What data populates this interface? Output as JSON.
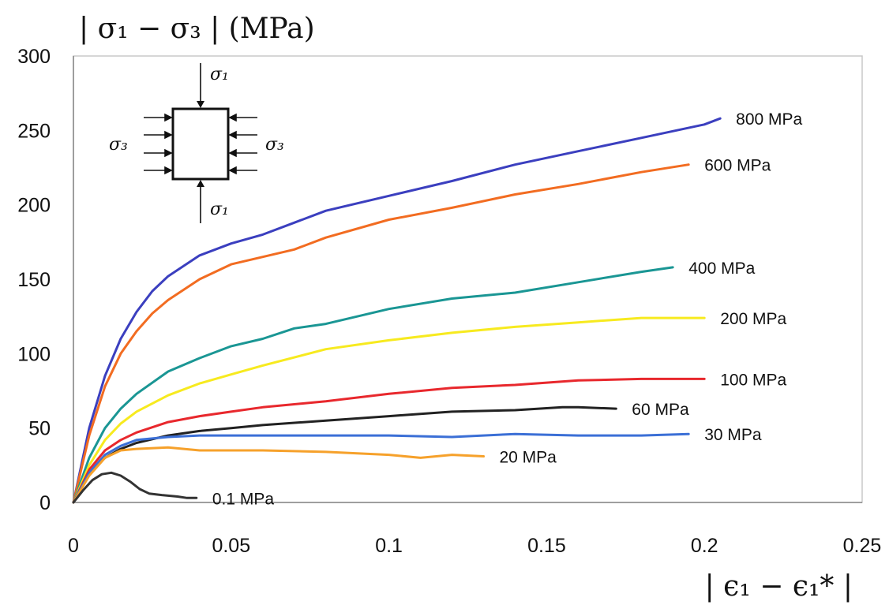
{
  "chart_data": {
    "type": "line",
    "ylabel": "| σ₁ − σ₃ |  (MPa)",
    "xlabel": "| ϵ₁ − ϵ₁* |",
    "xlim": [
      0,
      0.25
    ],
    "ylim": [
      0,
      300
    ],
    "x_ticks": [
      "0",
      "0.05",
      "0.1",
      "0.15",
      "0.2",
      "0.25"
    ],
    "y_ticks": [
      "0",
      "50",
      "100",
      "150",
      "200",
      "250",
      "300"
    ],
    "grid": false,
    "legend": "inline labels at curve ends",
    "inset_labels": [
      "σ₁",
      "σ₃",
      "σ₃",
      "σ₁"
    ],
    "series": [
      {
        "name": "800 MPa",
        "color": "#3b3fbf",
        "x": [
          0,
          0.005,
          0.01,
          0.015,
          0.02,
          0.025,
          0.03,
          0.04,
          0.05,
          0.06,
          0.07,
          0.08,
          0.1,
          0.12,
          0.14,
          0.16,
          0.18,
          0.2,
          0.205
        ],
        "y": [
          0,
          50,
          85,
          110,
          128,
          142,
          152,
          166,
          174,
          180,
          188,
          196,
          206,
          216,
          227,
          236,
          245,
          254,
          258
        ]
      },
      {
        "name": "600 MPa",
        "color": "#f26c21",
        "x": [
          0,
          0.005,
          0.01,
          0.015,
          0.02,
          0.025,
          0.03,
          0.04,
          0.05,
          0.06,
          0.07,
          0.08,
          0.1,
          0.12,
          0.14,
          0.16,
          0.18,
          0.195
        ],
        "y": [
          0,
          45,
          78,
          100,
          115,
          127,
          136,
          150,
          160,
          165,
          170,
          178,
          190,
          198,
          207,
          214,
          222,
          227
        ]
      },
      {
        "name": "400 MPa",
        "color": "#1a9694",
        "x": [
          0,
          0.005,
          0.01,
          0.015,
          0.02,
          0.03,
          0.04,
          0.05,
          0.06,
          0.07,
          0.08,
          0.1,
          0.12,
          0.14,
          0.16,
          0.18,
          0.19
        ],
        "y": [
          0,
          30,
          50,
          63,
          73,
          88,
          97,
          105,
          110,
          117,
          120,
          130,
          137,
          141,
          148,
          155,
          158
        ]
      },
      {
        "name": "200 MPa",
        "color": "#f7ea1f",
        "x": [
          0,
          0.005,
          0.01,
          0.015,
          0.02,
          0.03,
          0.04,
          0.05,
          0.06,
          0.08,
          0.1,
          0.12,
          0.14,
          0.16,
          0.18,
          0.2
        ],
        "y": [
          0,
          25,
          42,
          53,
          61,
          72,
          80,
          86,
          92,
          103,
          109,
          114,
          118,
          121,
          124,
          124
        ]
      },
      {
        "name": "100 MPa",
        "color": "#e8282d",
        "x": [
          0,
          0.005,
          0.01,
          0.015,
          0.02,
          0.03,
          0.04,
          0.05,
          0.06,
          0.08,
          0.1,
          0.12,
          0.14,
          0.16,
          0.18,
          0.2
        ],
        "y": [
          0,
          22,
          35,
          42,
          47,
          54,
          58,
          61,
          64,
          68,
          73,
          77,
          79,
          82,
          83,
          83
        ]
      },
      {
        "name": "60 MPa",
        "color": "#222222",
        "x": [
          0,
          0.005,
          0.01,
          0.015,
          0.02,
          0.03,
          0.04,
          0.05,
          0.06,
          0.08,
          0.1,
          0.12,
          0.14,
          0.155,
          0.16,
          0.172
        ],
        "y": [
          0,
          20,
          30,
          36,
          40,
          45,
          48,
          50,
          52,
          55,
          58,
          61,
          62,
          64,
          64,
          63
        ]
      },
      {
        "name": "30 MPa",
        "color": "#3b6fd6",
        "x": [
          0,
          0.005,
          0.01,
          0.015,
          0.02,
          0.03,
          0.04,
          0.06,
          0.08,
          0.1,
          0.12,
          0.14,
          0.16,
          0.18,
          0.195
        ],
        "y": [
          0,
          20,
          32,
          38,
          42,
          44,
          45,
          45,
          45,
          45,
          44,
          46,
          45,
          45,
          46
        ]
      },
      {
        "name": "20 MPa",
        "color": "#f6a12b",
        "x": [
          0,
          0.005,
          0.01,
          0.015,
          0.02,
          0.03,
          0.04,
          0.06,
          0.08,
          0.1,
          0.11,
          0.12,
          0.13
        ],
        "y": [
          0,
          18,
          30,
          35,
          36,
          37,
          35,
          35,
          34,
          32,
          30,
          32,
          31
        ]
      },
      {
        "name": "0.1 MPa",
        "color": "#333333",
        "x": [
          0,
          0.003,
          0.006,
          0.009,
          0.012,
          0.015,
          0.018,
          0.021,
          0.024,
          0.028,
          0.033,
          0.036,
          0.039
        ],
        "y": [
          0,
          8,
          15,
          19,
          20,
          18,
          14,
          9,
          6,
          5,
          4,
          3,
          3
        ]
      }
    ]
  }
}
